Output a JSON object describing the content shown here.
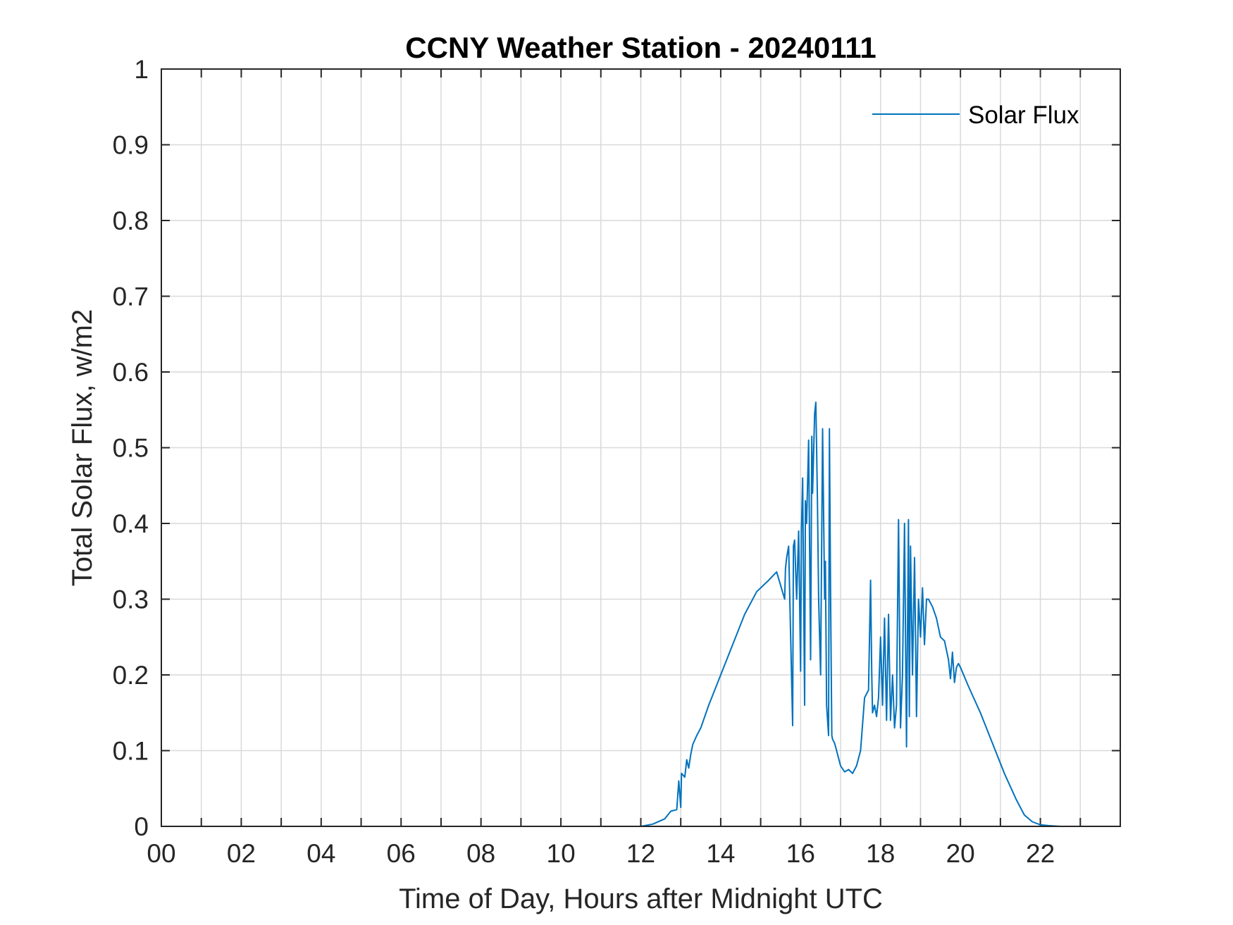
{
  "chart_data": {
    "type": "line",
    "title": "CCNY Weather Station - 20240111",
    "xlabel": "Time of Day, Hours after Midnight UTC",
    "ylabel": "Total Solar Flux, w/m2",
    "xlim": [
      0,
      24
    ],
    "ylim": [
      0,
      1
    ],
    "xticks": [
      0,
      2,
      4,
      6,
      8,
      10,
      12,
      14,
      16,
      18,
      20,
      22
    ],
    "xtick_labels": [
      "00",
      "02",
      "04",
      "06",
      "08",
      "10",
      "12",
      "14",
      "16",
      "18",
      "20",
      "22"
    ],
    "yticks": [
      0,
      0.1,
      0.2,
      0.3,
      0.4,
      0.5,
      0.6,
      0.7,
      0.8,
      0.9,
      1
    ],
    "ytick_labels": [
      "0",
      "0.1",
      "0.2",
      "0.3",
      "0.4",
      "0.5",
      "0.6",
      "0.7",
      "0.8",
      "0.9",
      "1"
    ],
    "grid": true,
    "legend_position": "top-right",
    "series": [
      {
        "name": "Solar Flux",
        "color": "#0072BD",
        "x": [
          0,
          12.0,
          12.3,
          12.6,
          12.75,
          12.9,
          12.95,
          13.0,
          13.02,
          13.1,
          13.15,
          13.2,
          13.25,
          13.3,
          13.4,
          13.5,
          13.7,
          14.0,
          14.3,
          14.6,
          14.9,
          15.2,
          15.4,
          15.6,
          15.62,
          15.65,
          15.7,
          15.8,
          15.82,
          15.85,
          15.9,
          15.95,
          16.0,
          16.02,
          16.05,
          16.1,
          16.12,
          16.15,
          16.2,
          16.25,
          16.28,
          16.3,
          16.35,
          16.38,
          16.4,
          16.42,
          16.45,
          16.5,
          16.55,
          16.6,
          16.62,
          16.65,
          16.7,
          16.72,
          16.75,
          16.78,
          16.8,
          16.85,
          16.9,
          17.0,
          17.1,
          17.2,
          17.3,
          17.4,
          17.5,
          17.6,
          17.7,
          17.75,
          17.78,
          17.8,
          17.85,
          17.9,
          17.95,
          18.0,
          18.05,
          18.1,
          18.15,
          18.2,
          18.25,
          18.3,
          18.35,
          18.4,
          18.45,
          18.5,
          18.55,
          18.6,
          18.65,
          18.7,
          18.72,
          18.75,
          18.8,
          18.85,
          18.9,
          18.95,
          19.0,
          19.05,
          19.1,
          19.15,
          19.2,
          19.3,
          19.4,
          19.5,
          19.6,
          19.7,
          19.75,
          19.8,
          19.85,
          19.9,
          19.95,
          20.0,
          20.2,
          20.5,
          20.8,
          21.1,
          21.4,
          21.6,
          21.8,
          22.0,
          22.2,
          22.5,
          23.0,
          24.0
        ],
        "y": [
          0,
          0,
          0.003,
          0.01,
          0.02,
          0.022,
          0.06,
          0.025,
          0.07,
          0.065,
          0.088,
          0.077,
          0.095,
          0.108,
          0.12,
          0.13,
          0.16,
          0.2,
          0.24,
          0.28,
          0.31,
          0.325,
          0.336,
          0.3,
          0.34,
          0.355,
          0.37,
          0.133,
          0.37,
          0.378,
          0.3,
          0.39,
          0.205,
          0.39,
          0.46,
          0.16,
          0.43,
          0.4,
          0.51,
          0.22,
          0.515,
          0.44,
          0.545,
          0.56,
          0.5,
          0.43,
          0.3,
          0.2,
          0.525,
          0.3,
          0.35,
          0.16,
          0.12,
          0.525,
          0.3,
          0.12,
          0.115,
          0.11,
          0.1,
          0.08,
          0.072,
          0.075,
          0.07,
          0.08,
          0.1,
          0.17,
          0.18,
          0.325,
          0.2,
          0.15,
          0.16,
          0.145,
          0.17,
          0.25,
          0.16,
          0.275,
          0.14,
          0.28,
          0.14,
          0.2,
          0.13,
          0.16,
          0.405,
          0.13,
          0.2,
          0.4,
          0.105,
          0.405,
          0.145,
          0.37,
          0.2,
          0.355,
          0.145,
          0.3,
          0.25,
          0.315,
          0.24,
          0.3,
          0.3,
          0.29,
          0.275,
          0.25,
          0.245,
          0.22,
          0.195,
          0.23,
          0.19,
          0.21,
          0.215,
          0.21,
          0.185,
          0.15,
          0.11,
          0.07,
          0.035,
          0.015,
          0.006,
          0.002,
          0.001,
          0,
          0,
          0
        ]
      }
    ]
  }
}
